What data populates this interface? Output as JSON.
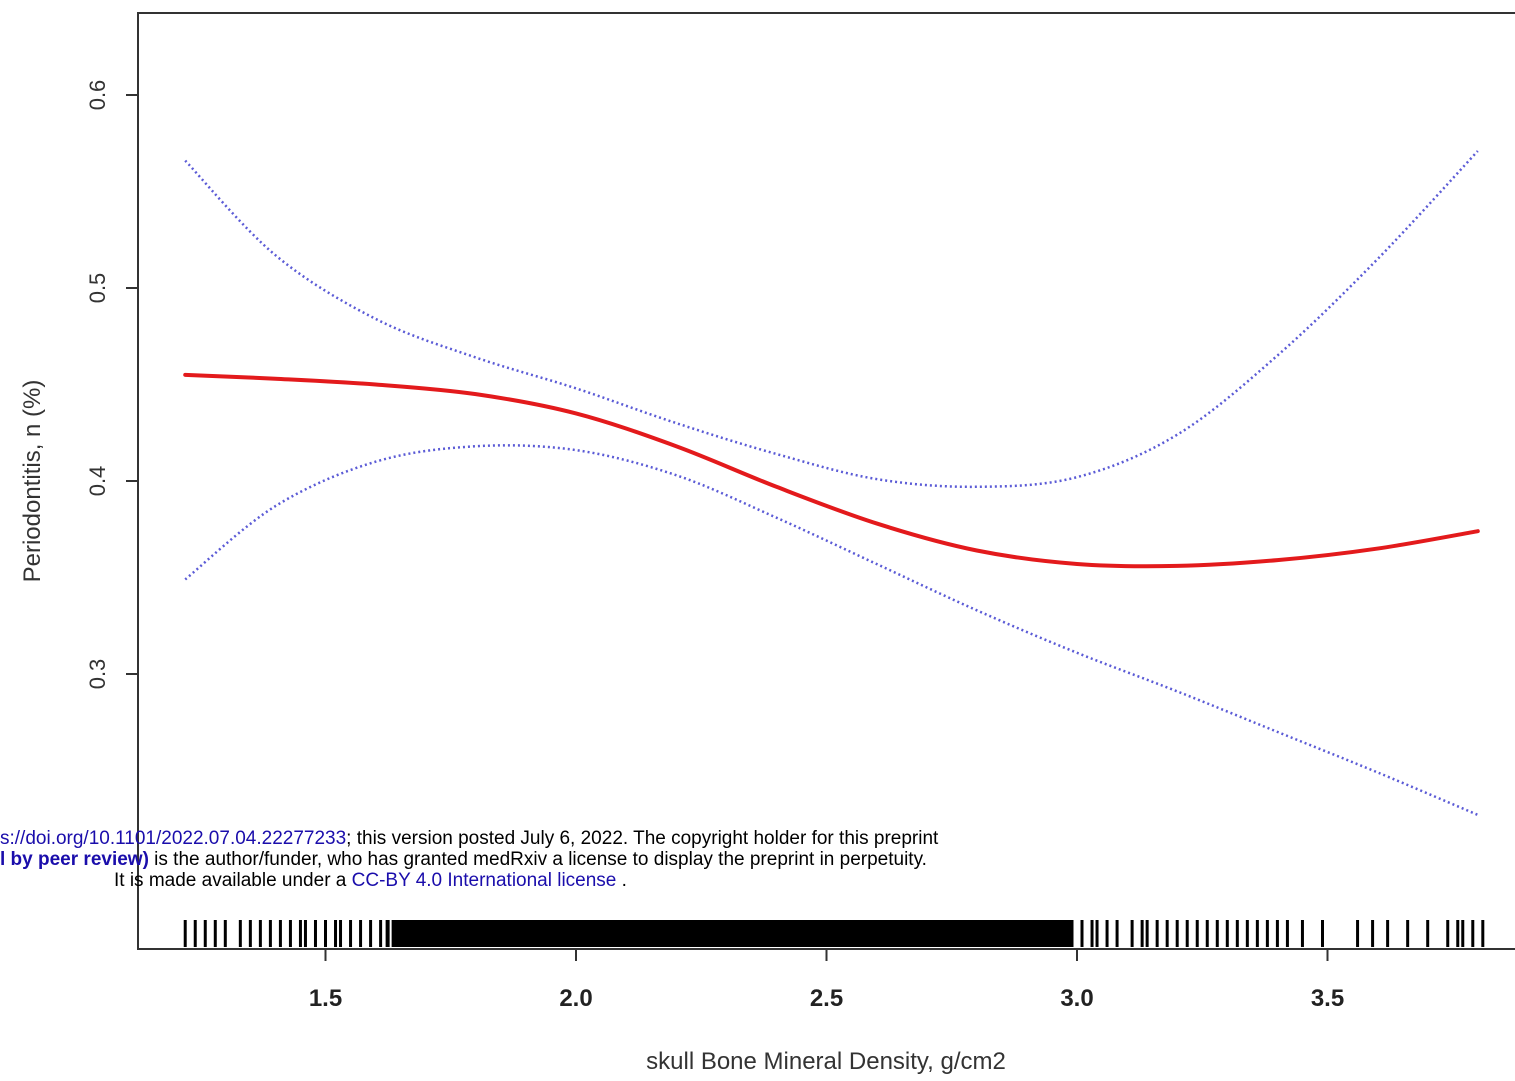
{
  "chart_data": {
    "type": "line",
    "xlabel": "skull Bone Mineral Density, g/cm2",
    "ylabel": "Periodontitis, n (%)",
    "xlim": [
      1.22,
      3.81
    ],
    "ylim": [
      0.21,
      0.65
    ],
    "x_ticks": [
      {
        "value": 1.5,
        "label": "1.5"
      },
      {
        "value": 2.0,
        "label": "2.0"
      },
      {
        "value": 2.5,
        "label": "2.5"
      },
      {
        "value": 3.0,
        "label": "3.0"
      },
      {
        "value": 3.5,
        "label": "3.5"
      }
    ],
    "y_ticks": [
      {
        "value": 0.6,
        "label": "0.6"
      },
      {
        "value": 0.5,
        "label": "0.5"
      },
      {
        "value": 0.4,
        "label": "0.4"
      },
      {
        "value": 0.3,
        "label": "0.3"
      }
    ],
    "series": [
      {
        "role": "estimate",
        "color": "#e31a1c",
        "style": "solid",
        "x": [
          1.22,
          1.4,
          1.6,
          1.8,
          2.0,
          2.2,
          2.4,
          2.6,
          2.8,
          3.0,
          3.2,
          3.4,
          3.6,
          3.8
        ],
        "y": [
          0.455,
          0.453,
          0.45,
          0.445,
          0.435,
          0.418,
          0.397,
          0.378,
          0.364,
          0.357,
          0.356,
          0.359,
          0.365,
          0.374
        ]
      },
      {
        "role": "upper-ci",
        "color": "#5b5bd6",
        "style": "dotted",
        "x": [
          1.22,
          1.4,
          1.6,
          1.8,
          2.0,
          2.2,
          2.4,
          2.6,
          2.8,
          3.0,
          3.2,
          3.4,
          3.6,
          3.8
        ],
        "y": [
          0.566,
          0.517,
          0.484,
          0.464,
          0.448,
          0.43,
          0.414,
          0.401,
          0.397,
          0.402,
          0.424,
          0.465,
          0.515,
          0.571
        ]
      },
      {
        "role": "lower-ci",
        "color": "#5b5bd6",
        "style": "dotted",
        "x": [
          1.22,
          1.4,
          1.6,
          1.8,
          2.0,
          2.2,
          2.4,
          2.6,
          2.8,
          3.0,
          3.2,
          3.4,
          3.6,
          3.8
        ],
        "y": [
          0.349,
          0.387,
          0.41,
          0.418,
          0.416,
          0.403,
          0.381,
          0.357,
          0.333,
          0.311,
          0.291,
          0.27,
          0.249,
          0.227
        ]
      }
    ],
    "rug": {
      "dense_range": [
        1.62,
        2.99
      ],
      "ticks": [
        1.22,
        1.24,
        1.26,
        1.28,
        1.3,
        1.33,
        1.35,
        1.37,
        1.39,
        1.41,
        1.43,
        1.45,
        1.46,
        1.48,
        1.5,
        1.52,
        1.53,
        1.55,
        1.57,
        1.59,
        1.61,
        2.99,
        3.01,
        3.03,
        3.04,
        3.06,
        3.08,
        3.11,
        3.13,
        3.14,
        3.16,
        3.18,
        3.2,
        3.22,
        3.24,
        3.26,
        3.28,
        3.3,
        3.32,
        3.34,
        3.36,
        3.38,
        3.4,
        3.42,
        3.45,
        3.49,
        3.56,
        3.59,
        3.62,
        3.66,
        3.7,
        3.74,
        3.76,
        3.77,
        3.79,
        3.81
      ]
    }
  },
  "watermark": {
    "line1_link": "s://doi.org/10.1101/2022.07.04.22277233",
    "line1_text": "; this version posted July 6, 2022. The copyright holder for this preprint",
    "line2_strong": "l by peer review)",
    "line2_text": " is the author/funder, who has granted medRxiv a license to display the preprint in perpetuity.",
    "line3_text": "It is made available under a ",
    "line3_link": "CC-BY 4.0 International license",
    "line3_end": " ."
  }
}
